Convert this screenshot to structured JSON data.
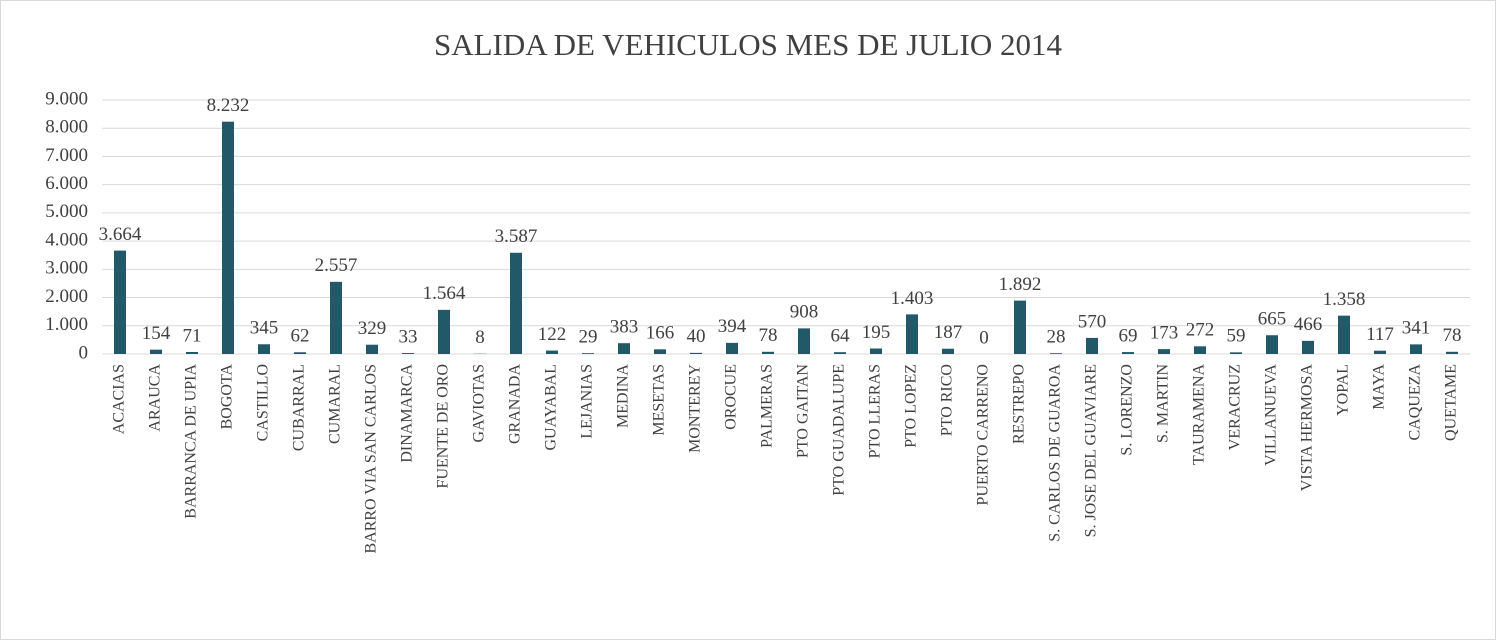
{
  "chart_data": {
    "type": "bar",
    "title": "SALIDA DE VEHICULOS MES DE JULIO 2014",
    "categories": [
      "ACACIAS",
      "ARAUCA",
      "BARRANCA DE UPIA",
      "BOGOTA",
      "CASTILLO",
      "CUBARRAL",
      "CUMARAL",
      "BARRO VIA SAN CARLOS",
      "DINAMARCA",
      "FUENTE DE ORO",
      "GAVIOTAS",
      "GRANADA",
      "GUAYABAL",
      "LEJANIAS",
      "MEDINA",
      "MESETAS",
      "MONTEREY",
      "OROCUE",
      "PALMERAS",
      "PTO GAITAN",
      "PTO GUADALUPE",
      "PTO LLERAS",
      "PTO LOPEZ",
      "PTO RICO",
      "PUERTO CARRENO",
      "RESTREPO",
      "S. CARLOS DE GUAROA",
      "S. JOSE DEL GUAVIARE",
      "S. LORENZO",
      "S. MARTIN",
      "TAURAMENA",
      "VERACRUZ",
      "VILLANUEVA",
      "VISTA HERMOSA",
      "YOPAL",
      "MAYA",
      "CAQUEZA",
      "QUETAME"
    ],
    "values": [
      3664,
      154,
      71,
      8232,
      345,
      62,
      2557,
      329,
      33,
      1564,
      8,
      3587,
      122,
      29,
      383,
      166,
      40,
      394,
      78,
      908,
      64,
      195,
      1403,
      187,
      0,
      1892,
      28,
      570,
      69,
      173,
      272,
      59,
      665,
      466,
      1358,
      117,
      341,
      78
    ],
    "value_labels": [
      "3.664",
      "154",
      "71",
      "8.232",
      "345",
      "62",
      "2.557",
      "329",
      "33",
      "1.564",
      "8",
      "3.587",
      "122",
      "29",
      "383",
      "166",
      "40",
      "394",
      "78",
      "908",
      "64",
      "195",
      "1.403",
      "187",
      "0",
      "1.892",
      "28",
      "570",
      "69",
      "173",
      "272",
      "59",
      "665",
      "466",
      "1.358",
      "117",
      "341",
      "78"
    ],
    "color": "#215968",
    "ylim": [
      0,
      9000
    ],
    "yticks": [
      0,
      {
        "value": 1000,
        "label": "1.000"
      },
      {
        "value": 2000,
        "label": "2.000"
      },
      {
        "value": 3000,
        "label": "3.000"
      },
      {
        "value": 4000,
        "label": "4.000"
      },
      {
        "value": 5000,
        "label": "5.000"
      },
      {
        "value": 6000,
        "label": "6.000"
      },
      {
        "value": 7000,
        "label": "7.000"
      },
      {
        "value": 8000,
        "label": "8.000"
      },
      {
        "value": 9000,
        "label": "9.000"
      }
    ],
    "grid": true
  }
}
